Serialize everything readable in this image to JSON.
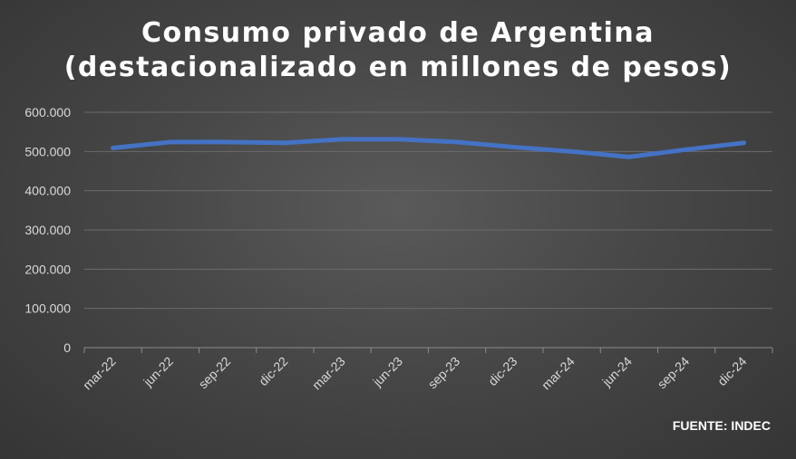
{
  "chart_data": {
    "type": "line",
    "title": "Consumo privado de Argentina",
    "subtitle": "(destacionalizado en millones de pesos)",
    "xlabel": "",
    "ylabel": "",
    "categories": [
      "mar-22",
      "jun-22",
      "sep-22",
      "dic-22",
      "mar-23",
      "jun-23",
      "sep-23",
      "dic-23",
      "mar-24",
      "jun-24",
      "sep-24",
      "dic-24"
    ],
    "series": [
      {
        "values": [
          509000,
          524000,
          524000,
          522000,
          531000,
          531000,
          524000,
          511000,
          500000,
          486000,
          505000,
          522000
        ]
      }
    ],
    "ylim": [
      0,
      600000
    ],
    "yticks": [
      0,
      100000,
      200000,
      300000,
      400000,
      500000,
      600000
    ],
    "ytick_labels": [
      "0",
      "100.000",
      "200.000",
      "300.000",
      "400.000",
      "500.000",
      "600.000"
    ],
    "grid": true,
    "legend": "none",
    "colors": {
      "series": "#4472c4",
      "background": "#474747",
      "text": "#ffffff",
      "tick_text": "#d9d9d9",
      "grid": "#6b6b6b"
    }
  },
  "source_note": "FUENTE: INDEC"
}
